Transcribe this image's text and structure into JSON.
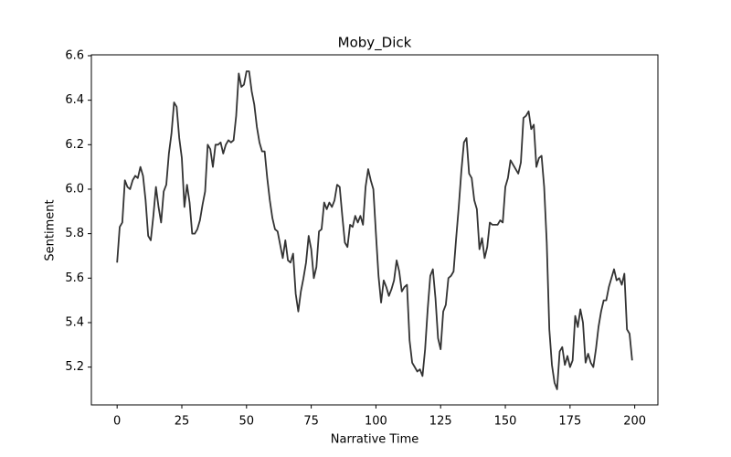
{
  "chart_data": {
    "type": "line",
    "title": "Moby_Dick",
    "x_label": "Narrative Time",
    "y_label": "Sentiment",
    "color": "#333333",
    "x": [
      0,
      1,
      2,
      3,
      4,
      5,
      6,
      7,
      8,
      9,
      10,
      11,
      12,
      13,
      14,
      15,
      16,
      17,
      18,
      19,
      20,
      21,
      22,
      23,
      24,
      25,
      26,
      27,
      28,
      29,
      30,
      31,
      32,
      33,
      34,
      35,
      36,
      37,
      38,
      39,
      40,
      41,
      42,
      43,
      44,
      45,
      46,
      47,
      48,
      49,
      50,
      51,
      52,
      53,
      54,
      55,
      56,
      57,
      58,
      59,
      60,
      61,
      62,
      63,
      64,
      65,
      66,
      67,
      68,
      69,
      70,
      71,
      72,
      73,
      74,
      75,
      76,
      77,
      78,
      79,
      80,
      81,
      82,
      83,
      84,
      85,
      86,
      87,
      88,
      89,
      90,
      91,
      92,
      93,
      94,
      95,
      96,
      97,
      98,
      99,
      100,
      101,
      102,
      103,
      104,
      105,
      106,
      107,
      108,
      109,
      110,
      111,
      112,
      113,
      114,
      115,
      116,
      117,
      118,
      119,
      120,
      121,
      122,
      123,
      124,
      125,
      126,
      127,
      128,
      129,
      130,
      131,
      132,
      133,
      134,
      135,
      136,
      137,
      138,
      139,
      140,
      141,
      142,
      143,
      144,
      145,
      146,
      147,
      148,
      149,
      150,
      151,
      152,
      153,
      154,
      155,
      156,
      157,
      158,
      159,
      160,
      161,
      162,
      163,
      164,
      165,
      166,
      167,
      168,
      169,
      170,
      171,
      172,
      173,
      174,
      175,
      176,
      177,
      178,
      179,
      180,
      181,
      182,
      183,
      184,
      185,
      186,
      187,
      188,
      189,
      190,
      191,
      192,
      193,
      194,
      195,
      196,
      197,
      198,
      199
    ],
    "values": [
      5.67,
      5.83,
      5.85,
      6.04,
      6.01,
      6.0,
      6.04,
      6.06,
      6.05,
      6.1,
      6.06,
      5.95,
      5.79,
      5.77,
      5.88,
      6.01,
      5.92,
      5.85,
      5.99,
      6.02,
      6.16,
      6.25,
      6.39,
      6.37,
      6.23,
      6.14,
      5.92,
      6.02,
      5.94,
      5.8,
      5.8,
      5.82,
      5.86,
      5.93,
      5.99,
      6.2,
      6.18,
      6.1,
      6.2,
      6.2,
      6.21,
      6.16,
      6.2,
      6.22,
      6.21,
      6.22,
      6.33,
      6.52,
      6.46,
      6.47,
      6.53,
      6.53,
      6.44,
      6.38,
      6.28,
      6.21,
      6.17,
      6.17,
      6.05,
      5.95,
      5.87,
      5.82,
      5.81,
      5.75,
      5.69,
      5.77,
      5.68,
      5.67,
      5.71,
      5.53,
      5.45,
      5.54,
      5.6,
      5.67,
      5.79,
      5.73,
      5.6,
      5.65,
      5.81,
      5.82,
      5.94,
      5.91,
      5.94,
      5.92,
      5.95,
      6.02,
      6.01,
      5.88,
      5.76,
      5.74,
      5.84,
      5.83,
      5.88,
      5.85,
      5.88,
      5.84,
      6.01,
      6.09,
      6.04,
      6.0,
      5.8,
      5.61,
      5.49,
      5.59,
      5.56,
      5.52,
      5.55,
      5.59,
      5.68,
      5.63,
      5.54,
      5.56,
      5.57,
      5.32,
      5.22,
      5.2,
      5.18,
      5.19,
      5.16,
      5.28,
      5.46,
      5.61,
      5.64,
      5.51,
      5.33,
      5.28,
      5.45,
      5.48,
      5.6,
      5.61,
      5.63,
      5.78,
      5.92,
      6.08,
      6.21,
      6.23,
      6.07,
      6.05,
      5.95,
      5.91,
      5.73,
      5.78,
      5.69,
      5.74,
      5.85,
      5.84,
      5.84,
      5.84,
      5.86,
      5.85,
      6.01,
      6.05,
      6.13,
      6.11,
      6.09,
      6.07,
      6.12,
      6.32,
      6.33,
      6.35,
      6.27,
      6.29,
      6.1,
      6.14,
      6.15,
      6.01,
      5.76,
      5.37,
      5.21,
      5.13,
      5.1,
      5.27,
      5.29,
      5.21,
      5.25,
      5.2,
      5.23,
      5.43,
      5.38,
      5.46,
      5.4,
      5.22,
      5.26,
      5.22,
      5.2,
      5.28,
      5.38,
      5.45,
      5.5,
      5.5,
      5.56,
      5.6,
      5.64,
      5.59,
      5.6,
      5.57,
      5.62,
      5.37,
      5.35,
      5.23
    ],
    "xlim": [
      -9.95,
      208.95
    ],
    "ylim": [
      5.03,
      6.604
    ],
    "xticks": [
      0,
      25,
      50,
      75,
      100,
      125,
      150,
      175,
      200
    ],
    "yticks": [
      5.2,
      5.4,
      5.6,
      5.8,
      {
        "value": 6,
        "label": "6.0"
      },
      6.2,
      6.4,
      6.6
    ]
  }
}
